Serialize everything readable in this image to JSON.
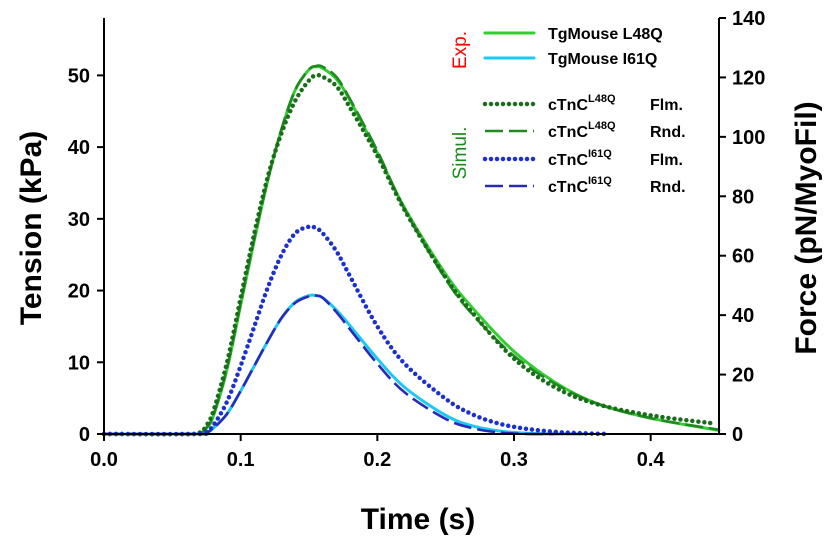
{
  "chart_data": {
    "type": "line",
    "xlabel": "Time  (s)",
    "ylabel": "Tension  (kPa)",
    "y2label": "Force  (pN/MyoFil)",
    "xlim": [
      0,
      0.45
    ],
    "ylim": [
      0,
      58
    ],
    "y2lim": [
      0,
      140
    ],
    "x_ticks": [
      "0.0",
      "0.1",
      "0.2",
      "0.3",
      "0.4"
    ],
    "y_ticks": [
      "0",
      "10",
      "20",
      "30",
      "40",
      "50"
    ],
    "y2_ticks": [
      "0",
      "20",
      "40",
      "60",
      "80",
      "100",
      "120",
      "140"
    ],
    "grid": false,
    "legend_position": "top-right",
    "group_labels": {
      "experimental": "Exp.",
      "simulated": "Simul."
    },
    "group_colors": {
      "experimental": "#ff0000",
      "simulated": "#1a8a1a"
    },
    "series": [
      {
        "name": "TgMouse L48Q",
        "group": "experimental",
        "color": "#33cc33",
        "style": "solid",
        "x": [
          0.0,
          0.06,
          0.07,
          0.075,
          0.08,
          0.09,
          0.1,
          0.11,
          0.12,
          0.13,
          0.14,
          0.15,
          0.155,
          0.16,
          0.17,
          0.18,
          0.2,
          0.22,
          0.25,
          0.27,
          0.3,
          0.33,
          0.36,
          0.4,
          0.45
        ],
        "y": [
          0,
          0,
          0.1,
          0.8,
          2.5,
          9,
          18,
          27,
          35.5,
          42.5,
          48,
          50.8,
          51.2,
          51,
          49.5,
          46.5,
          39.2,
          31.5,
          22.3,
          17.5,
          11.5,
          7.2,
          4.3,
          2.2,
          0.5
        ]
      },
      {
        "name": "TgMouse I61Q",
        "group": "experimental",
        "color": "#1ec8f0",
        "style": "solid",
        "x": [
          0.0,
          0.07,
          0.075,
          0.08,
          0.09,
          0.1,
          0.11,
          0.12,
          0.13,
          0.14,
          0.15,
          0.155,
          0.16,
          0.17,
          0.18,
          0.2,
          0.22,
          0.25,
          0.27,
          0.29,
          0.31,
          0.33,
          0.35
        ],
        "y": [
          0,
          0,
          0.2,
          0.8,
          2.8,
          6,
          9.5,
          13,
          16.2,
          18.4,
          19.3,
          19.3,
          19,
          17.3,
          15.1,
          10.5,
          6.5,
          2.6,
          1.1,
          0.4,
          0.1,
          0,
          0
        ]
      },
      {
        "name": "cTnC L48Q Flm.",
        "label": {
          "base": "cTnC",
          "sup": "L48Q",
          "suffix": "Flm."
        },
        "group": "simulated",
        "color": "#1a6e1a",
        "style": "dotted",
        "x": [
          0.0,
          0.06,
          0.07,
          0.075,
          0.08,
          0.09,
          0.1,
          0.11,
          0.12,
          0.13,
          0.14,
          0.15,
          0.155,
          0.16,
          0.17,
          0.18,
          0.2,
          0.22,
          0.25,
          0.27,
          0.3,
          0.33,
          0.36,
          0.4,
          0.445
        ],
        "y": [
          0,
          0,
          0.2,
          1.2,
          3.2,
          10,
          19,
          28,
          36,
          42,
          46.5,
          49.3,
          50,
          49.8,
          48.5,
          45.5,
          38.8,
          31.2,
          21.8,
          16.8,
          10.5,
          6.5,
          4.2,
          2.6,
          1.5
        ]
      },
      {
        "name": "cTnC L48Q Rnd.",
        "label": {
          "base": "cTnC",
          "sup": "L48Q",
          "suffix": "Rnd."
        },
        "group": "simulated",
        "color": "#1f8a1f",
        "style": "dashed",
        "x": [
          0.0,
          0.06,
          0.07,
          0.075,
          0.08,
          0.09,
          0.1,
          0.11,
          0.12,
          0.13,
          0.14,
          0.15,
          0.155,
          0.16,
          0.17,
          0.18,
          0.2,
          0.22,
          0.25,
          0.27,
          0.3,
          0.33,
          0.36,
          0.4,
          0.45
        ],
        "y": [
          0,
          0,
          0.1,
          0.9,
          2.6,
          9.2,
          18.3,
          27.3,
          35.6,
          42.6,
          48,
          50.8,
          51.3,
          51.2,
          49.8,
          46.7,
          39.5,
          31.3,
          21.6,
          16.6,
          10.9,
          7,
          4.3,
          2.2,
          0.6
        ]
      },
      {
        "name": "cTnC I61Q Flm.",
        "label": {
          "base": "cTnC",
          "sup": "I61Q",
          "suffix": "Flm."
        },
        "group": "simulated",
        "color": "#1c2fd0",
        "style": "dotted",
        "x": [
          0.0,
          0.07,
          0.075,
          0.08,
          0.09,
          0.1,
          0.11,
          0.12,
          0.13,
          0.14,
          0.15,
          0.155,
          0.16,
          0.17,
          0.18,
          0.2,
          0.22,
          0.25,
          0.27,
          0.29,
          0.31,
          0.33,
          0.35,
          0.37
        ],
        "y": [
          0,
          0,
          0.3,
          1.2,
          4.5,
          9.5,
          15,
          20.5,
          25,
          28,
          28.9,
          28.7,
          28,
          25.5,
          22,
          15,
          9.8,
          4.9,
          2.7,
          1.4,
          0.7,
          0.3,
          0.1,
          0
        ]
      },
      {
        "name": "cTnC I61Q Rnd.",
        "label": {
          "base": "cTnC",
          "sup": "I61Q",
          "suffix": "Rnd."
        },
        "group": "simulated",
        "color": "#2a2ab8",
        "style": "dashed",
        "x": [
          0.0,
          0.07,
          0.075,
          0.08,
          0.09,
          0.1,
          0.11,
          0.12,
          0.13,
          0.14,
          0.15,
          0.155,
          0.16,
          0.17,
          0.18,
          0.2,
          0.22,
          0.25,
          0.27,
          0.29,
          0.31,
          0.33
        ],
        "y": [
          0,
          0,
          0.2,
          0.8,
          2.8,
          6,
          9.5,
          13,
          16.2,
          18.3,
          19.2,
          19.3,
          19,
          17,
          14.6,
          9.8,
          5.8,
          2.1,
          0.8,
          0.2,
          0,
          0
        ]
      }
    ]
  }
}
